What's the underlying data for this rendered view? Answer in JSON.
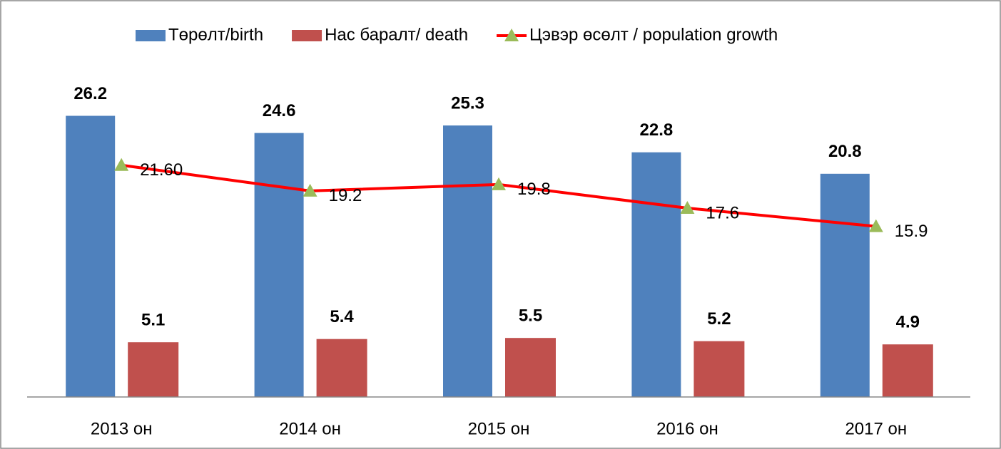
{
  "chart_data": {
    "type": "bar-line",
    "categories": [
      "2013 он",
      "2014 он",
      "2015 он",
      "2016 он",
      "2017 он"
    ],
    "series": [
      {
        "name": "Төрөлт/birth",
        "type": "bar",
        "color": "#4f81bd",
        "values": [
          26.2,
          24.6,
          25.3,
          22.8,
          20.8
        ]
      },
      {
        "name": "Нас баралт/ death",
        "type": "bar",
        "color": "#c0504d",
        "values": [
          5.1,
          5.4,
          5.5,
          5.2,
          4.9
        ]
      },
      {
        "name": "Цэвэр өсөлт / population growth",
        "type": "line",
        "color": "#ff0000",
        "marker_color": "#9bbb59",
        "values": [
          21.6,
          19.2,
          19.8,
          17.6,
          15.9
        ],
        "value_labels": [
          "21.60",
          "19.2",
          "19.8",
          "17.6",
          "15.9"
        ]
      }
    ],
    "ylim": [
      0,
      35
    ],
    "legend": "top"
  }
}
